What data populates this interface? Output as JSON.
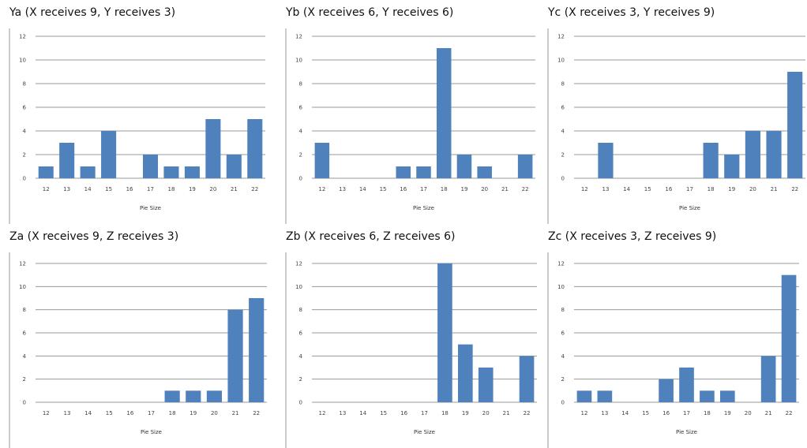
{
  "chart_data": [
    {
      "type": "bar",
      "title": "Ya (X receives 9, Y receives 3)",
      "xlabel": "Pie Size",
      "ylabel": "",
      "ylim": [
        0,
        12
      ],
      "yticks": [
        0,
        2,
        4,
        6,
        8,
        10,
        12
      ],
      "grid": true,
      "color": "#4f81bd",
      "categories": [
        "12",
        "13",
        "14",
        "15",
        "16",
        "17",
        "18",
        "19",
        "20",
        "21",
        "22"
      ],
      "values": [
        1,
        3,
        1,
        4,
        0,
        2,
        1,
        1,
        5,
        2,
        5
      ]
    },
    {
      "type": "bar",
      "title": "Yb (X receives 6, Y receives 6)",
      "xlabel": "Pie Size",
      "ylabel": "",
      "ylim": [
        0,
        12
      ],
      "yticks": [
        0,
        2,
        4,
        6,
        8,
        10,
        12
      ],
      "grid": true,
      "color": "#4f81bd",
      "categories": [
        "12",
        "13",
        "14",
        "15",
        "16",
        "17",
        "18",
        "19",
        "20",
        "21",
        "22"
      ],
      "values": [
        3,
        0,
        0,
        0,
        1,
        1,
        11,
        2,
        1,
        0,
        2
      ]
    },
    {
      "type": "bar",
      "title": "Yc (X receives 3, Y receives 9)",
      "xlabel": "Pie Size",
      "ylabel": "",
      "ylim": [
        0,
        12
      ],
      "yticks": [
        0,
        2,
        4,
        6,
        8,
        10,
        12
      ],
      "grid": true,
      "color": "#4f81bd",
      "categories": [
        "12",
        "13",
        "14",
        "15",
        "16",
        "17",
        "18",
        "19",
        "20",
        "21",
        "22"
      ],
      "values": [
        0,
        3,
        0,
        0,
        0,
        0,
        3,
        2,
        4,
        4,
        9
      ]
    },
    {
      "type": "bar",
      "title": "Za (X receives 9, Z receives 3)",
      "xlabel": "Pie Size",
      "ylabel": "",
      "ylim": [
        0,
        12
      ],
      "yticks": [
        0,
        2,
        4,
        6,
        8,
        10,
        12
      ],
      "grid": true,
      "color": "#4f81bd",
      "categories": [
        "12",
        "13",
        "14",
        "15",
        "16",
        "17",
        "18",
        "19",
        "20",
        "21",
        "22"
      ],
      "values": [
        0,
        0,
        0,
        0,
        0,
        0,
        1,
        1,
        1,
        8,
        9
      ]
    },
    {
      "type": "bar",
      "title": "Zb (X receives 6, Z receives 6)",
      "xlabel": "Pie Size",
      "ylabel": "",
      "ylim": [
        0,
        12
      ],
      "yticks": [
        0,
        2,
        4,
        6,
        8,
        10,
        12
      ],
      "grid": true,
      "color": "#4f81bd",
      "categories": [
        "12",
        "13",
        "14",
        "15",
        "16",
        "17",
        "18",
        "19",
        "20",
        "21",
        "22"
      ],
      "values": [
        0,
        0,
        0,
        0,
        0,
        0,
        12,
        5,
        3,
        0,
        4
      ]
    },
    {
      "type": "bar",
      "title": "Zc (X receives 3, Z receives 9)",
      "xlabel": "Pie Size",
      "ylabel": "",
      "ylim": [
        0,
        12
      ],
      "yticks": [
        0,
        2,
        4,
        6,
        8,
        10,
        12
      ],
      "grid": true,
      "color": "#4f81bd",
      "categories": [
        "12",
        "13",
        "14",
        "15",
        "16",
        "17",
        "18",
        "19",
        "20",
        "21",
        "22"
      ],
      "values": [
        1,
        1,
        0,
        0,
        2,
        3,
        1,
        1,
        0,
        4,
        11
      ]
    }
  ]
}
